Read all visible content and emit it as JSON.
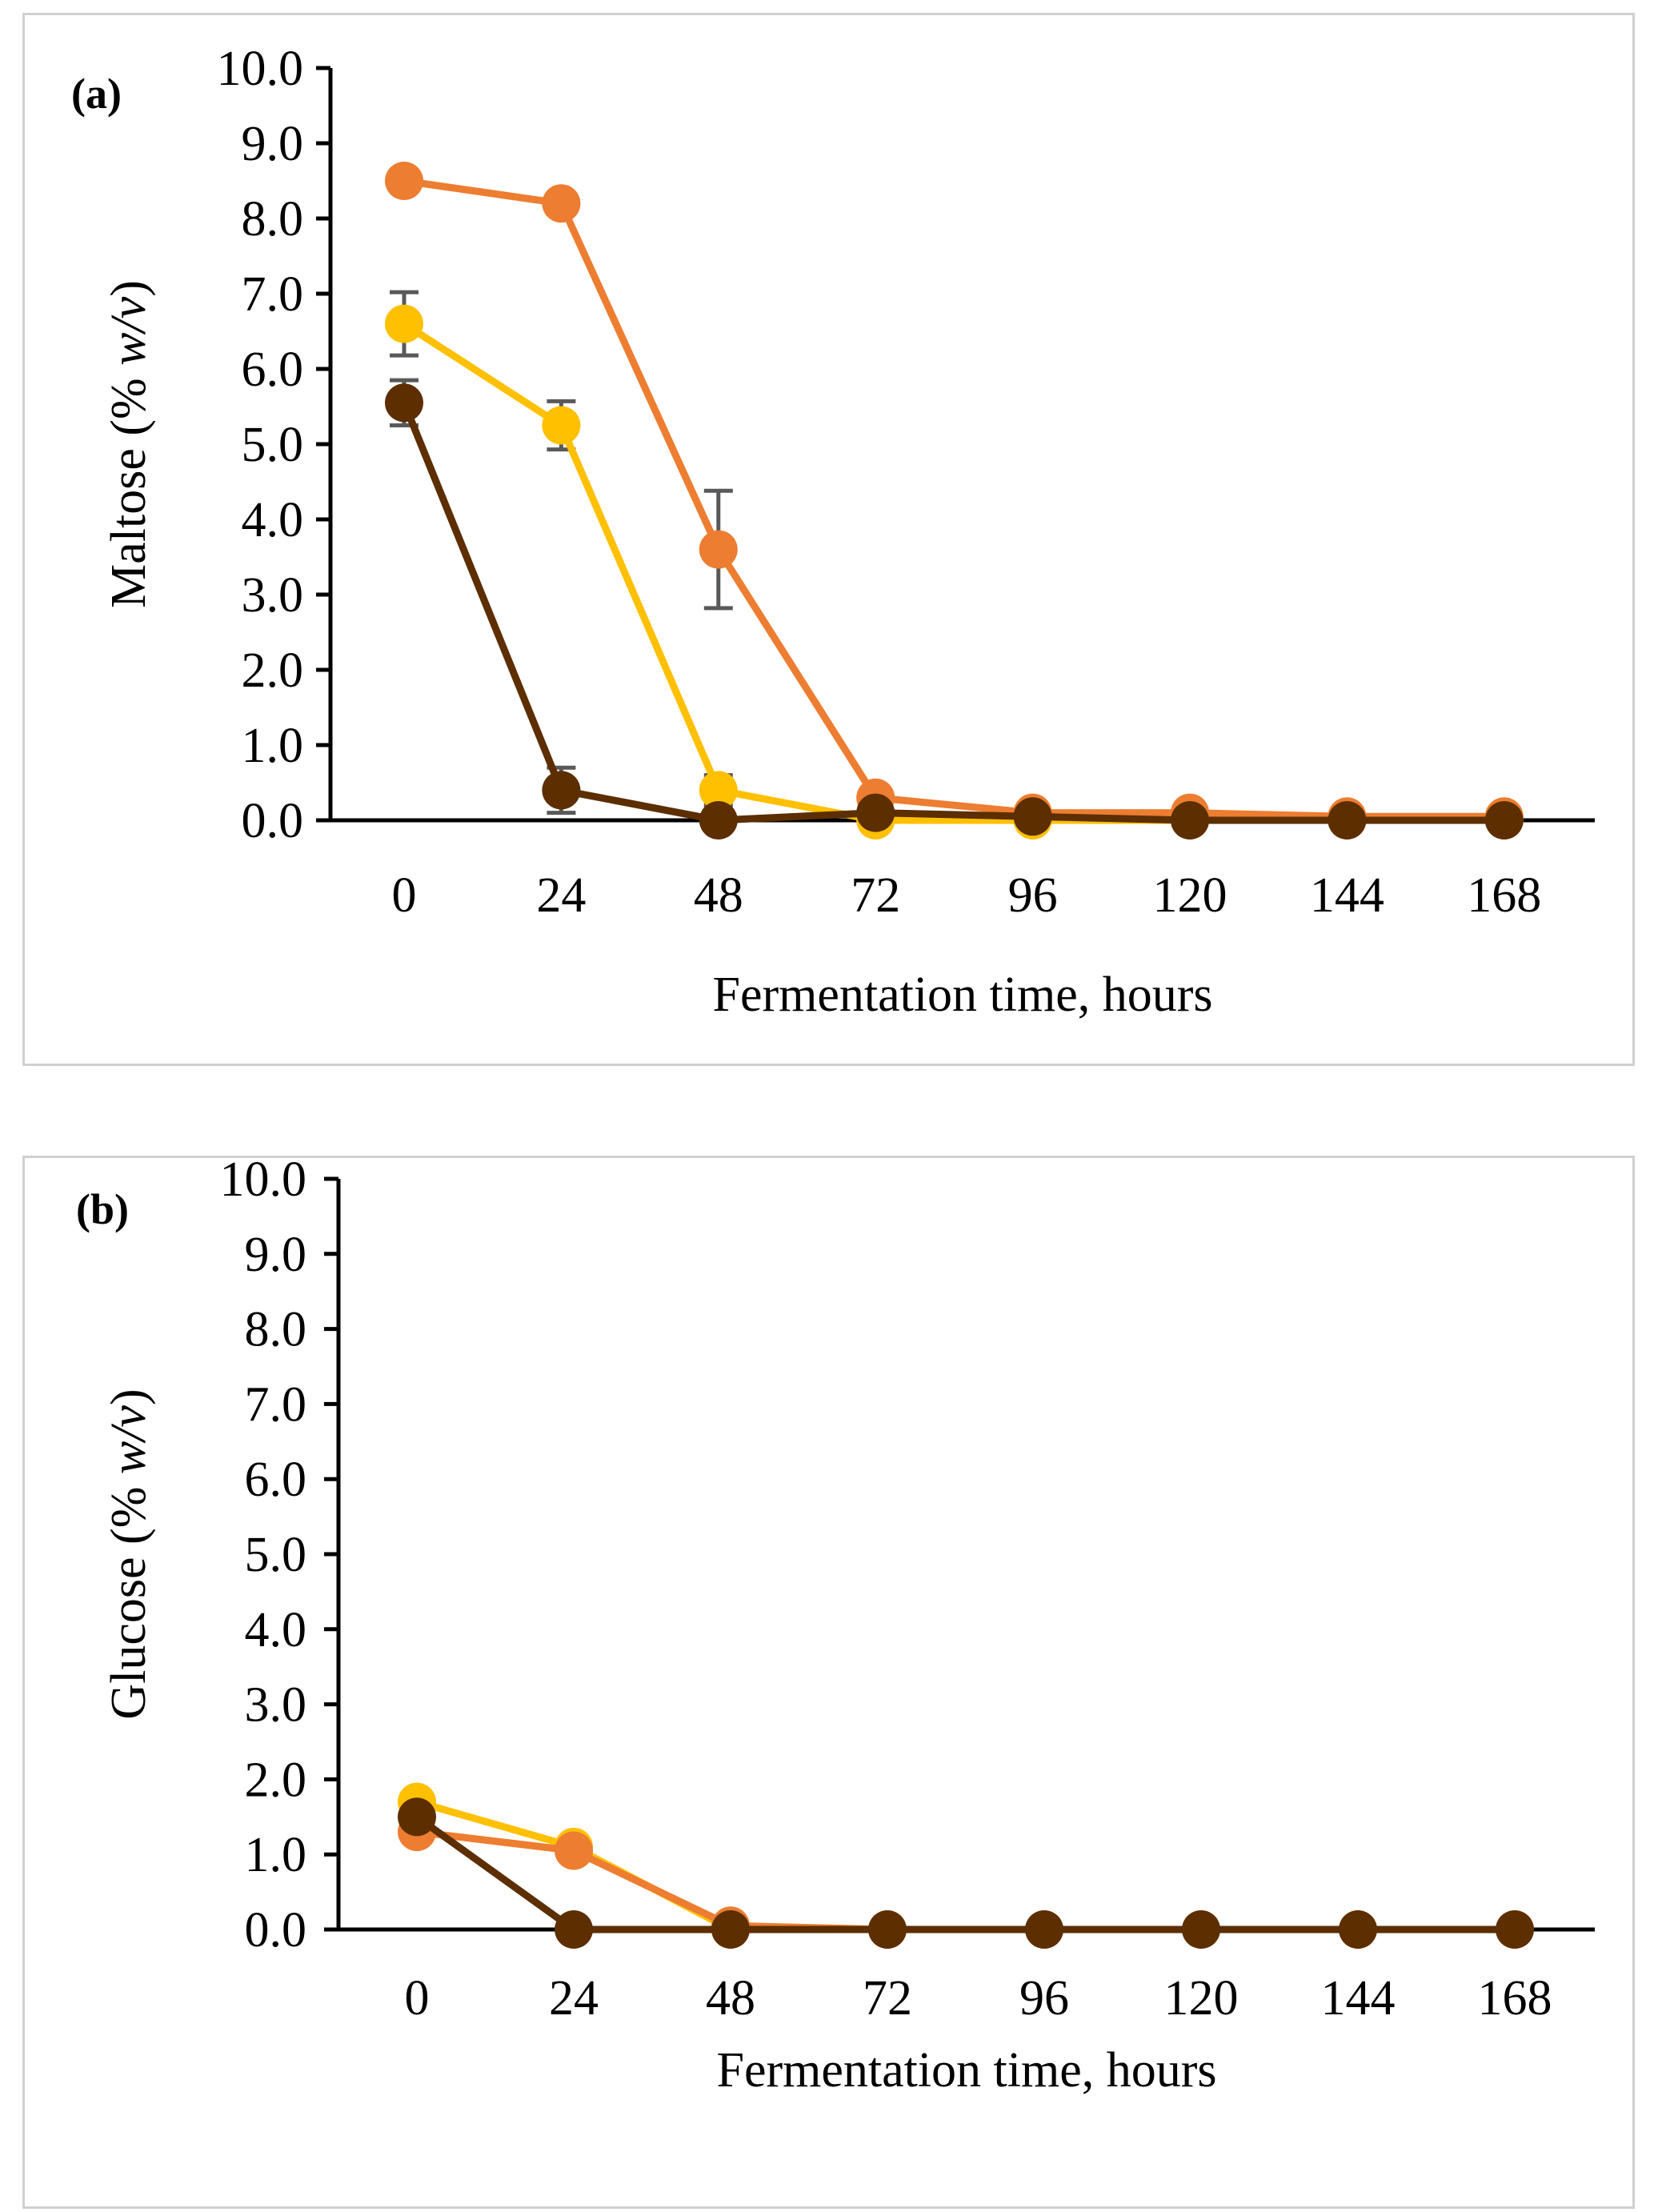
{
  "chart_data": [
    {
      "type": "line",
      "panel_label": "(a)",
      "xlabel": "Fermentation time, hours",
      "ylabel_prefix": "Maltose (% ",
      "ylabel_italic": "w/v",
      "ylabel_suffix": ")",
      "categories": [
        "0",
        "24",
        "48",
        "72",
        "96",
        "120",
        "144",
        "168"
      ],
      "yticks": [
        "0.0",
        "1.0",
        "2.0",
        "3.0",
        "4.0",
        "5.0",
        "6.0",
        "7.0",
        "8.0",
        "9.0",
        "10.0"
      ],
      "ylim": [
        0,
        10
      ],
      "grid": false,
      "series": [
        {
          "name": "series-orange",
          "color": "#ED7D31",
          "values": [
            8.5,
            8.2,
            3.6,
            0.3,
            0.1,
            0.1,
            0.05,
            0.05
          ],
          "errors": [
            0,
            0,
            0.78,
            0,
            0,
            0,
            0,
            0
          ]
        },
        {
          "name": "series-yellow",
          "color": "#FFC000",
          "values": [
            6.6,
            5.25,
            0.4,
            0.0,
            0.0,
            0.0,
            0.0,
            0.0
          ],
          "errors": [
            0.42,
            0.32,
            0.2,
            0,
            0,
            0,
            0,
            0
          ]
        },
        {
          "name": "series-brown",
          "color": "#5C2E00",
          "values": [
            5.55,
            0.4,
            0.0,
            0.1,
            0.05,
            0.0,
            0.0,
            0.0
          ],
          "errors": [
            0.3,
            0.3,
            0,
            0,
            0,
            0,
            0,
            0
          ]
        }
      ]
    },
    {
      "type": "line",
      "panel_label": "(b)",
      "xlabel": "Fermentation time, hours",
      "ylabel_prefix": "Glucose (% ",
      "ylabel_italic": "w/v",
      "ylabel_suffix": ")",
      "categories": [
        "0",
        "24",
        "48",
        "72",
        "96",
        "120",
        "144",
        "168"
      ],
      "yticks": [
        "0.0",
        "1.0",
        "2.0",
        "3.0",
        "4.0",
        "5.0",
        "6.0",
        "7.0",
        "8.0",
        "9.0",
        "10.0"
      ],
      "ylim": [
        0,
        10
      ],
      "grid": false,
      "series": [
        {
          "name": "series-yellow",
          "color": "#FFC000",
          "values": [
            1.7,
            1.1,
            0.0,
            0.0,
            0.0,
            0.0,
            0.0,
            0.0
          ],
          "errors": [
            0,
            0,
            0,
            0,
            0,
            0,
            0,
            0
          ]
        },
        {
          "name": "series-orange",
          "color": "#ED7D31",
          "values": [
            1.3,
            1.05,
            0.05,
            0.0,
            0.0,
            0.0,
            0.0,
            0.0
          ],
          "errors": [
            0,
            0,
            0,
            0,
            0,
            0,
            0,
            0
          ]
        },
        {
          "name": "series-brown",
          "color": "#5C2E00",
          "values": [
            1.5,
            0.0,
            0.0,
            0.0,
            0.0,
            0.0,
            0.0,
            0.0
          ],
          "errors": [
            0,
            0,
            0,
            0,
            0,
            0,
            0,
            0
          ]
        }
      ]
    }
  ]
}
